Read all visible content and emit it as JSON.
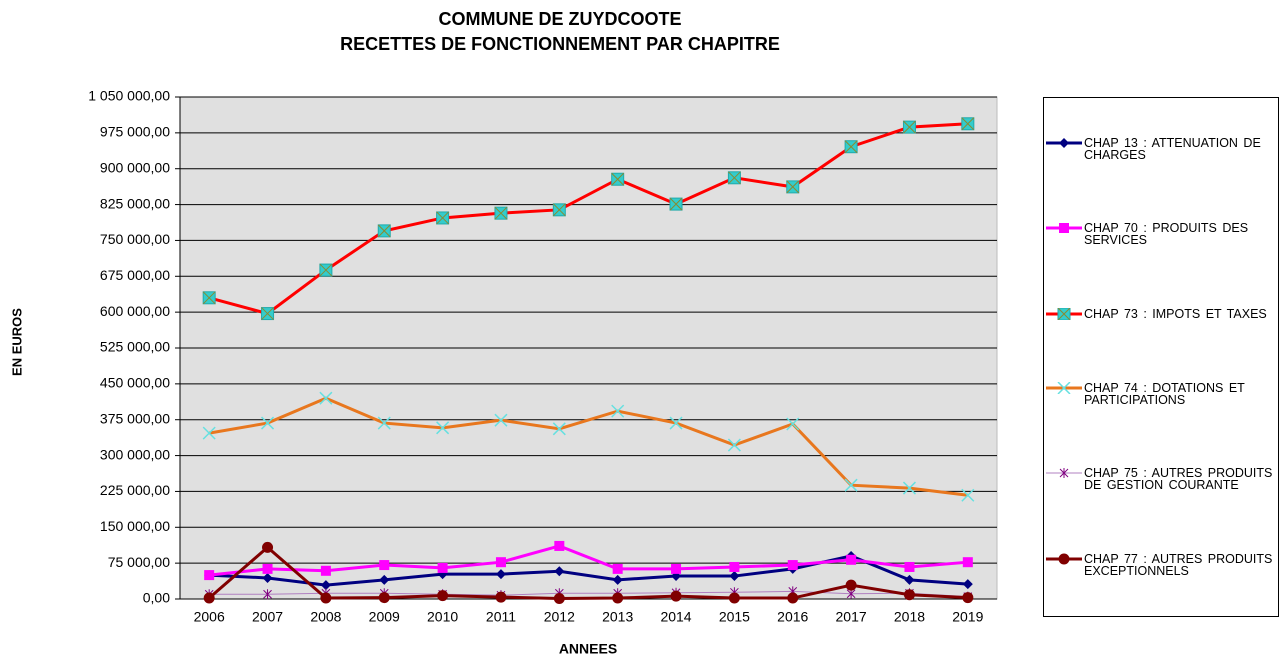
{
  "chart_data": {
    "type": "line",
    "title": [
      "COMMUNE DE ZUYDCOOTE",
      "RECETTES DE FONCTIONNEMENT PAR CHAPITRE"
    ],
    "x_label": "ANNEES",
    "y_label": "EN EUROS",
    "categories": [
      "2006",
      "2007",
      "2008",
      "2009",
      "2010",
      "2011",
      "2012",
      "2013",
      "2014",
      "2015",
      "2016",
      "2017",
      "2018",
      "2019"
    ],
    "ylim": [
      0,
      1050000
    ],
    "yticks": [
      {
        "value": 0,
        "label": "0,00"
      },
      {
        "value": 75000,
        "label": "75 000,00"
      },
      {
        "value": 150000,
        "label": "150 000,00"
      },
      {
        "value": 225000,
        "label": "225 000,00"
      },
      {
        "value": 300000,
        "label": "300 000,00"
      },
      {
        "value": 375000,
        "label": "375 000,00"
      },
      {
        "value": 450000,
        "label": "450 000,00"
      },
      {
        "value": 525000,
        "label": "525 000,00"
      },
      {
        "value": 600000,
        "label": "600 000,00"
      },
      {
        "value": 675000,
        "label": "675 000,00"
      },
      {
        "value": 750000,
        "label": "750 000,00"
      },
      {
        "value": 825000,
        "label": "825 000,00"
      },
      {
        "value": 900000,
        "label": "900 000,00"
      },
      {
        "value": 975000,
        "label": "975 000,00"
      },
      {
        "value": 1050000,
        "label": "1 050 000,00"
      }
    ],
    "grid": true,
    "legend": "right",
    "plot_background": "#e0e0e0",
    "series": [
      {
        "name": "CHAP 13 : ATTENUATION DE CHARGES",
        "color": "#000080",
        "marker": "diamond",
        "marker_color": "#000080",
        "values": [
          50000,
          44000,
          29000,
          40000,
          52000,
          52000,
          58000,
          40000,
          48000,
          48000,
          63000,
          90000,
          40000,
          31000
        ]
      },
      {
        "name": "CHAP 70 : PRODUITS DES SERVICES",
        "color": "#ff00ff",
        "marker": "square",
        "marker_color": "#ff00ff",
        "values": [
          50000,
          63000,
          59000,
          71000,
          65000,
          77000,
          111000,
          63000,
          63000,
          67000,
          71000,
          82000,
          67000,
          77000
        ]
      },
      {
        "name": "CHAP 73 : IMPOTS ET TAXES",
        "color": "#ff0000",
        "marker": "square-x",
        "marker_color": "#33cccc",
        "values": [
          630000,
          597000,
          688000,
          770000,
          797000,
          807000,
          814000,
          878000,
          826000,
          881000,
          862000,
          946000,
          987000,
          994000
        ]
      },
      {
        "name": "CHAP 74 : DOTATIONS ET PARTICIPATIONS",
        "color": "#e8771e",
        "marker": "x",
        "marker_color": "#66e0e0",
        "values": [
          347000,
          368000,
          420000,
          368000,
          358000,
          374000,
          356000,
          393000,
          368000,
          322000,
          366000,
          238000,
          232000,
          217000
        ]
      },
      {
        "name": "CHAP 75 : AUTRES PRODUITS DE GESTION COURANTE",
        "color": "#b080c0",
        "marker": "asterisk",
        "marker_color": "#800080",
        "values": [
          10000,
          10000,
          12000,
          12000,
          10000,
          8000,
          12000,
          12000,
          13000,
          14000,
          16000,
          11000,
          12000,
          5000
        ]
      },
      {
        "name": "CHAP 77 : AUTRES PRODUITS EXCEPTIONNELS",
        "color": "#800000",
        "marker": "circle",
        "marker_color": "#800000",
        "values": [
          2000,
          108000,
          2000,
          3000,
          7000,
          4000,
          1000,
          2000,
          6000,
          2000,
          2000,
          29000,
          9000,
          3000
        ]
      }
    ]
  }
}
